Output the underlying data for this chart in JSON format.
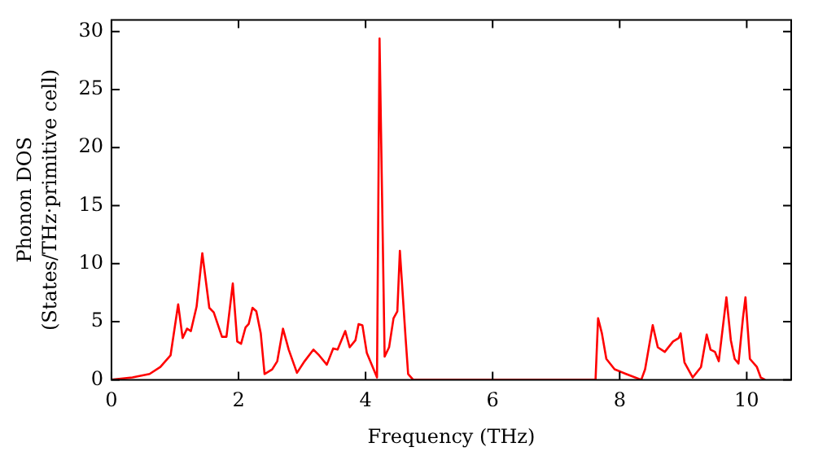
{
  "chart_data": {
    "type": "line",
    "xlabel": "Frequency (THz)",
    "ylabel": "Phonon DOS\n(States/THz·primitive cell)",
    "xlim": [
      0,
      10.7
    ],
    "ylim": [
      0,
      31
    ],
    "xticks": [
      0,
      2,
      4,
      6,
      8,
      10
    ],
    "yticks": [
      0,
      5,
      10,
      15,
      20,
      25,
      30
    ],
    "grid": false,
    "legend": false,
    "marker": "none",
    "line_style": "solid",
    "series": [
      {
        "color": "#ff0000",
        "x": [
          0,
          0.33,
          0.6,
          0.77,
          0.93,
          1.05,
          1.12,
          1.19,
          1.25,
          1.34,
          1.43,
          1.54,
          1.61,
          1.74,
          1.81,
          1.91,
          1.98,
          2.04,
          2.11,
          2.16,
          2.22,
          2.28,
          2.35,
          2.41,
          2.53,
          2.61,
          2.7,
          2.79,
          2.92,
          3.04,
          3.18,
          3.27,
          3.39,
          3.49,
          3.56,
          3.68,
          3.75,
          3.84,
          3.89,
          3.95,
          4.02,
          4.18,
          4.22,
          4.3,
          4.37,
          4.44,
          4.5,
          4.54,
          4.63,
          4.67,
          4.75,
          7.62,
          7.66,
          7.72,
          7.79,
          7.92,
          8.1,
          8.34,
          8.4,
          8.52,
          8.6,
          8.71,
          8.84,
          8.93,
          8.96,
          9.02,
          9.15,
          9.28,
          9.37,
          9.43,
          9.5,
          9.56,
          9.68,
          9.75,
          9.81,
          9.87,
          9.94,
          9.98,
          10.05,
          10.16,
          10.22,
          10.29
        ],
        "values": [
          0,
          0.2,
          0.5,
          1.1,
          2.1,
          6.5,
          3.6,
          4.4,
          4.2,
          6.3,
          10.9,
          6.2,
          5.8,
          3.7,
          3.7,
          8.3,
          3.3,
          3.1,
          4.5,
          4.8,
          6.2,
          5.9,
          4.0,
          0.5,
          0.9,
          1.6,
          4.4,
          2.6,
          0.6,
          1.6,
          2.6,
          2.1,
          1.3,
          2.7,
          2.6,
          4.2,
          2.8,
          3.4,
          4.8,
          4.7,
          2.3,
          0.2,
          29.4,
          2.0,
          2.8,
          5.3,
          5.9,
          11.1,
          3.6,
          0.5,
          0,
          0,
          5.3,
          4.0,
          1.8,
          0.9,
          0.5,
          0,
          0.9,
          4.7,
          2.8,
          2.4,
          3.3,
          3.6,
          4.0,
          1.5,
          0.2,
          1.1,
          3.9,
          2.6,
          2.4,
          1.6,
          7.1,
          3.4,
          1.8,
          1.4,
          5.3,
          7.1,
          1.8,
          1.1,
          0.2,
          0
        ]
      }
    ]
  }
}
